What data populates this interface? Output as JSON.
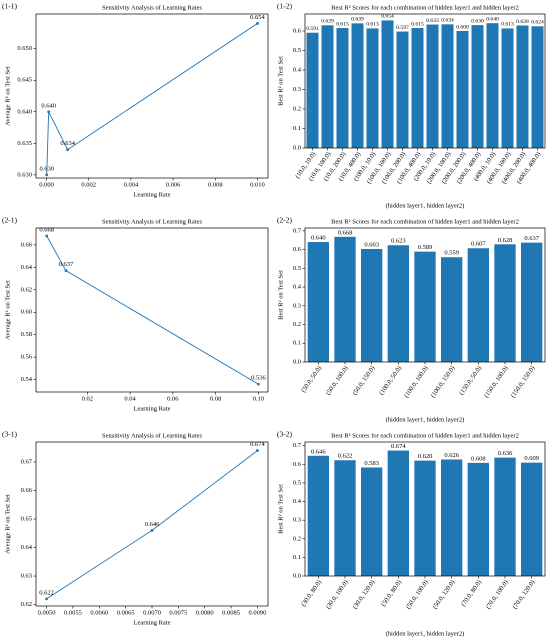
{
  "chart_data": [
    {
      "type": "line",
      "label": "(1-1)",
      "title": "Sensitivity Analysis of Learning Rates",
      "x_label": "Learning Rate",
      "y_label": "Average R² on Test Set",
      "color": "#1f77b4",
      "x": [
        1e-05,
        0.0001,
        0.001,
        0.01
      ],
      "values": [
        0.63,
        0.64,
        0.634,
        0.654
      ],
      "value_labels": [
        "0.630",
        "0.640",
        "0.634",
        "0.654"
      ],
      "xlim": [
        -0.0005,
        0.0105
      ],
      "xticks": [
        {
          "value": 0,
          "label": "0.000"
        },
        0.002,
        0.004,
        0.006,
        0.008,
        {
          "value": 0.01,
          "label": "0.010"
        }
      ],
      "ylim": [
        0.6295,
        0.6555
      ],
      "yticks": [
        {
          "value": 0.63,
          "label": "0.630"
        },
        0.635,
        {
          "value": 0.64,
          "label": "0.640"
        },
        0.645,
        {
          "value": 0.65,
          "label": "0.650"
        }
      ]
    },
    {
      "type": "bar",
      "label": "(1-2)",
      "title": "Best  R² Scores for each combination of hidden layer1 and hidden layer2",
      "x_label": "(hidden layer1, hidden layer2)",
      "y_label": "Best  R² on Test Set",
      "color": "#1f77b4",
      "categories": [
        "(10.0, 10.0)",
        "(10.0, 100.0)",
        "(10.0, 200.0)",
        "(10.0, 400.0)",
        "(100.0, 10.0)",
        "(100.0, 100.0)",
        "(100.0, 200.0)",
        "(100.0, 400.0)",
        "(200.0, 10.0)",
        "(200.0, 100.0)",
        "(200.0, 200.0)",
        "(200.0, 400.0)",
        "(400.0, 10.0)",
        "(400.0, 100.0)",
        "(400.0, 200.0)",
        "(400.0, 400.0)"
      ],
      "values": [
        0.591,
        0.629,
        0.615,
        0.639,
        0.613,
        0.654,
        0.597,
        0.615,
        0.633,
        0.634,
        0.6,
        0.63,
        0.64,
        0.613,
        0.628,
        0.624
      ],
      "value_labels": [
        "0.591",
        "0.629",
        "0.615",
        "0.639",
        "0.613",
        "0.654",
        "0.597",
        "0.615",
        "0.633",
        "0.634",
        "0.600",
        "0.630",
        "0.640",
        "0.613",
        "0.628",
        "0.624"
      ],
      "ylim": [
        0,
        0.687
      ],
      "yticks": [
        {
          "value": 0,
          "label": "0.0"
        },
        0.1,
        0.2,
        0.3,
        0.4,
        0.5,
        0.6
      ]
    },
    {
      "type": "line",
      "label": "(2-1)",
      "title": "Sensitivity Analysis of Learning Rates",
      "x_label": "Learning Rate",
      "y_label": "Average R² on Test Set",
      "color": "#1f77b4",
      "x": [
        0.001,
        0.01,
        0.1
      ],
      "values": [
        0.668,
        0.637,
        0.536
      ],
      "value_labels": [
        "0.668",
        "0.637",
        "0.536"
      ],
      "xlim": [
        -0.004,
        0.1045
      ],
      "xticks": [
        0.02,
        0.04,
        0.06,
        0.08,
        {
          "value": 0.1,
          "label": "0.10"
        }
      ],
      "ylim": [
        0.529,
        0.675
      ],
      "yticks": [
        0.54,
        0.56,
        0.58,
        {
          "value": 0.6,
          "label": "0.60"
        },
        0.62,
        0.64,
        0.66
      ]
    },
    {
      "type": "bar",
      "label": "(2-2)",
      "title": "Best  R² Scores for each combination of hidden layer1 and hidden layer2",
      "x_label": "(hidden layer1, hidden layer2)",
      "y_label": "Best  R² on Test Set",
      "color": "#1f77b4",
      "categories": [
        "(50.0, 50.0)",
        "(50.0, 100.0)",
        "(50.0, 150.0)",
        "(100.0, 50.0)",
        "(100.0, 100.0)",
        "(100.0, 150.0)",
        "(150.0, 50.0)",
        "(150.0, 100.0)",
        "(150.0, 150.0)"
      ],
      "values": [
        0.64,
        0.668,
        0.603,
        0.623,
        0.589,
        0.559,
        0.607,
        0.628,
        0.637
      ],
      "value_labels": [
        "0.640",
        "0.668",
        "0.603",
        "0.623",
        "0.589",
        "0.559",
        "0.607",
        "0.628",
        "0.637"
      ],
      "ylim": [
        0,
        0.715
      ],
      "yticks": [
        {
          "value": 0,
          "label": "0.0"
        },
        0.1,
        0.2,
        0.3,
        0.4,
        0.5,
        0.6,
        0.7
      ]
    },
    {
      "type": "line",
      "label": "(3-1)",
      "title": "Sensitivity Analysis of Learning Rates",
      "x_label": "Learning Rate",
      "y_label": "Average R² on Test Set",
      "color": "#1f77b4",
      "x": [
        0.005,
        0.007,
        0.009
      ],
      "values": [
        0.622,
        0.646,
        0.674
      ],
      "value_labels": [
        "0.622",
        "0.646",
        "0.674"
      ],
      "xlim": [
        0.0048,
        0.0092
      ],
      "xticks": [
        {
          "value": 0.005,
          "label": "0.0050"
        },
        0.0055,
        {
          "value": 0.006,
          "label": "0.0060"
        },
        0.0065,
        {
          "value": 0.007,
          "label": "0.0070"
        },
        0.0075,
        {
          "value": 0.008,
          "label": "0.0080"
        },
        0.0085,
        {
          "value": 0.009,
          "label": "0.0090"
        }
      ],
      "ylim": [
        0.6195,
        0.677
      ],
      "yticks": [
        0.62,
        0.63,
        0.64,
        0.65,
        0.66,
        0.67
      ]
    },
    {
      "type": "bar",
      "label": "(3-2)",
      "title": "Best  R² Scores for each combination of hidden layer1 and hidden layer2",
      "x_label": "(hidden layer1, hidden layer2)",
      "y_label": "Best  R² on Test Set",
      "color": "#1f77b4",
      "categories": [
        "(30.0, 80.0)",
        "(30.0, 100.0)",
        "(30.0, 120.0)",
        "(50.0, 80.0)",
        "(50.0, 100.0)",
        "(50.0, 120.0)",
        "(70.0, 80.0)",
        "(70.0, 100.0)",
        "(70.0, 120.0)"
      ],
      "values": [
        0.646,
        0.622,
        0.583,
        0.674,
        0.62,
        0.626,
        0.608,
        0.636,
        0.609
      ],
      "value_labels": [
        "0.646",
        "0.622",
        "0.583",
        "0.674",
        "0.620",
        "0.626",
        "0.608",
        "0.636",
        "0.609"
      ],
      "ylim": [
        0,
        0.72
      ],
      "yticks": [
        {
          "value": 0,
          "label": "0.0"
        },
        0.1,
        0.2,
        0.3,
        0.4,
        0.5,
        0.6,
        0.7
      ]
    }
  ]
}
